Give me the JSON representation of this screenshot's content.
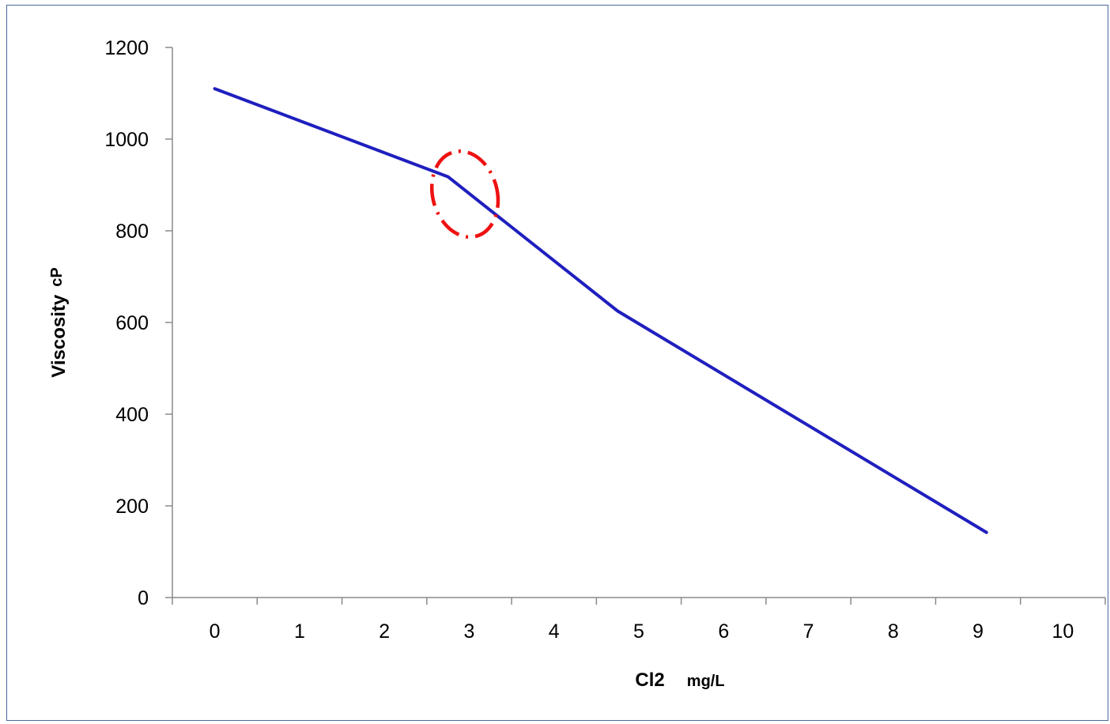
{
  "chart_data": {
    "type": "line",
    "xlabel": "Cl2",
    "xlabel_unit": "mg/L",
    "ylabel": "Viscosity",
    "ylabel_unit": "cP",
    "x_categories": [
      "0",
      "1",
      "2",
      "3",
      "4",
      "5",
      "6",
      "7",
      "8",
      "9",
      "10"
    ],
    "y_ticks": [
      "0",
      "200",
      "400",
      "600",
      "800",
      "1000",
      "1200"
    ],
    "xlim": [
      -0.5,
      10.5
    ],
    "ylim": [
      0,
      1200
    ],
    "grid": false,
    "series": [
      {
        "color": "#1f1fbf",
        "points": [
          {
            "x": 0,
            "y": 1110
          },
          {
            "x": 2.75,
            "y": 918
          },
          {
            "x": 4.75,
            "y": 625
          },
          {
            "x": 9.1,
            "y": 142
          }
        ]
      }
    ],
    "annotations": [
      {
        "type": "dashed-circle",
        "color": "#ee1111",
        "x": 2.95,
        "y": 880,
        "rx": 0.38,
        "ry": 95
      }
    ]
  }
}
